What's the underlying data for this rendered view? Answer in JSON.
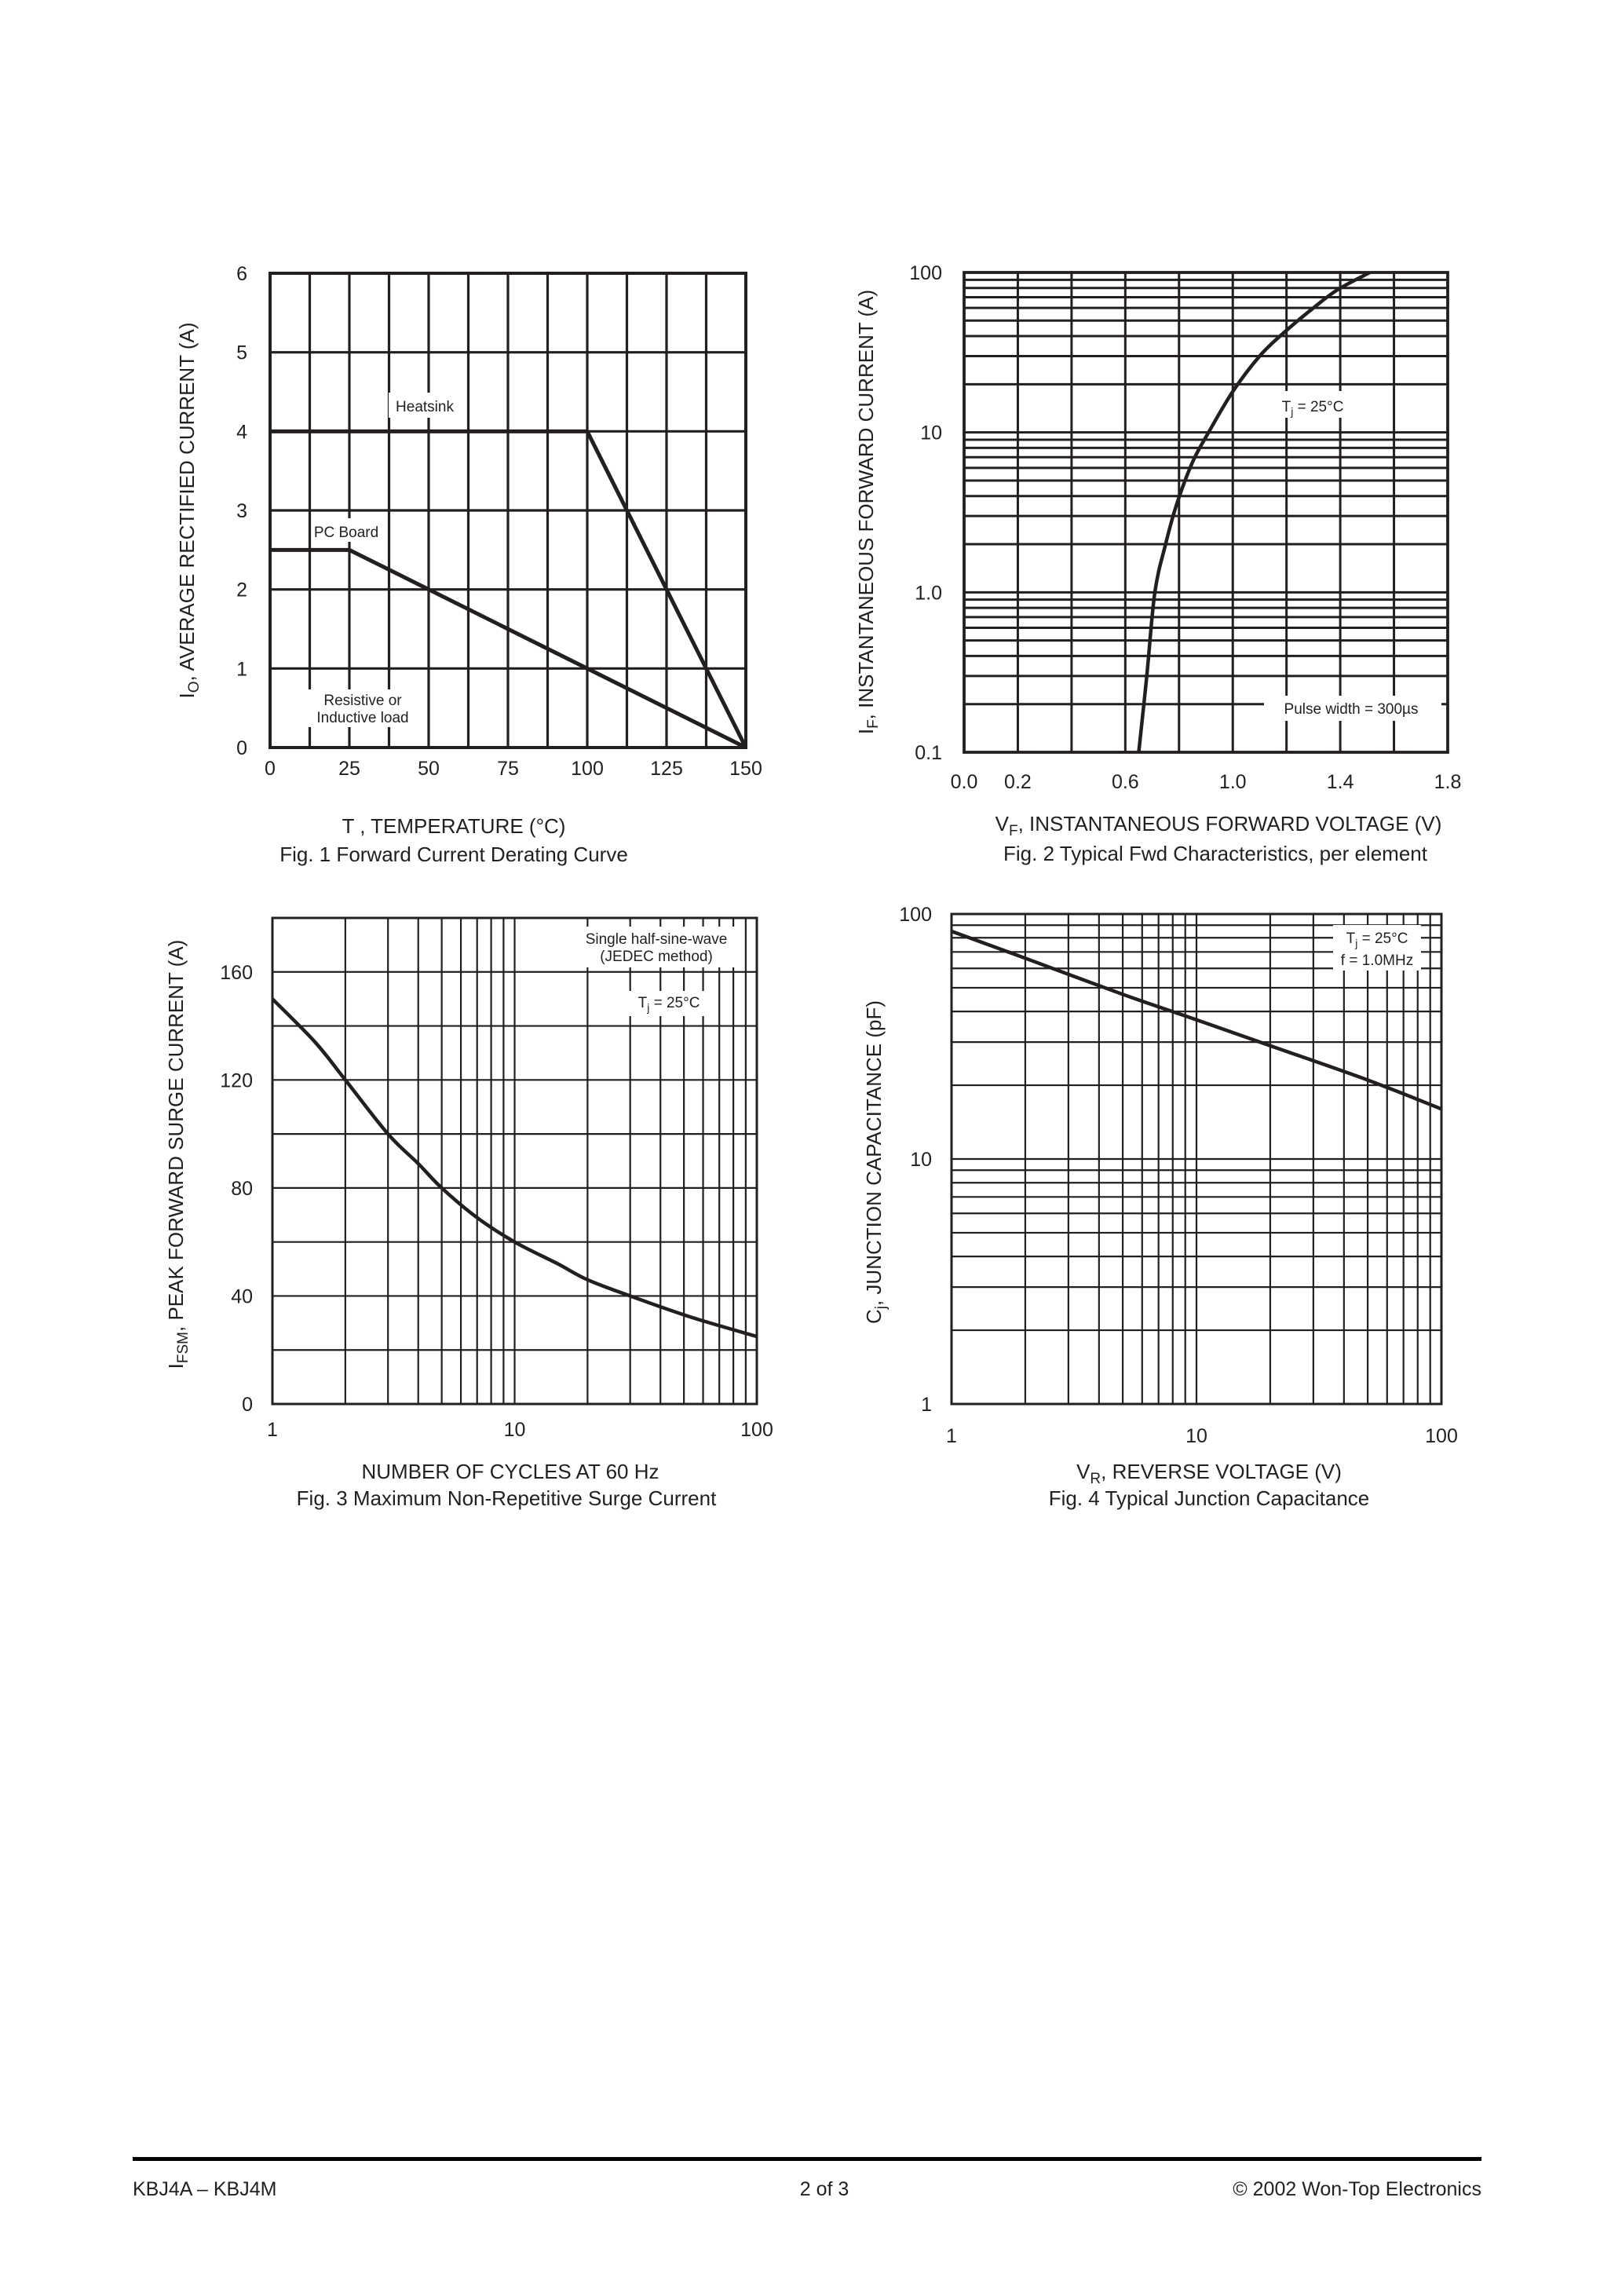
{
  "footer": {
    "left": "KBJ4A – KBJ4M",
    "center": "2 of 3",
    "right": "© 2002 Won-Top Electronics"
  },
  "chart_data": [
    {
      "type": "line",
      "caption": "Fig. 1  Forward Current Derating Curve",
      "xlabel": {
        "text": "T  , TEMPERATURE (°C)"
      },
      "ylabel": {
        "prefix": "I",
        "sub": "O",
        "text": ", AVERAGE RECTIFIED CURRENT (A)"
      },
      "xscale": "linear",
      "yscale": "linear",
      "xlim": [
        0,
        150
      ],
      "ylim": [
        0,
        6
      ],
      "xticks": [
        {
          "v": 0,
          "label": "0"
        },
        {
          "v": 25,
          "label": "25"
        },
        {
          "v": 50,
          "label": "50"
        },
        {
          "v": 75,
          "label": "75"
        },
        {
          "v": 100,
          "label": "100"
        },
        {
          "v": 125,
          "label": "125"
        },
        {
          "v": 150,
          "label": "150"
        }
      ],
      "yticks": [
        {
          "v": 0,
          "label": "0"
        },
        {
          "v": 1,
          "label": "1"
        },
        {
          "v": 2,
          "label": "2"
        },
        {
          "v": 3,
          "label": "3"
        },
        {
          "v": 4,
          "label": "4"
        },
        {
          "v": 5,
          "label": "5"
        },
        {
          "v": 6,
          "label": "6"
        }
      ],
      "grid": true,
      "series": [
        {
          "name": "Heatsink",
          "points": [
            [
              0,
              4
            ],
            [
              100,
              4
            ],
            [
              150,
              0
            ]
          ]
        },
        {
          "name": "PC Board",
          "points": [
            [
              0,
              2.5
            ],
            [
              25,
              2.5
            ],
            [
              150,
              0
            ]
          ]
        }
      ],
      "annotations": [
        "Resistive or",
        "Inductive load"
      ]
    },
    {
      "type": "line",
      "caption": "Fig. 2  Typical Fwd Characteristics, per element",
      "xlabel": {
        "prefix": "V",
        "sub": "F",
        "text": ", INSTANTANEOUS FORWARD VOLTAGE (V)"
      },
      "ylabel": {
        "prefix": "I",
        "sub": "F",
        "text": ", INSTANTANEOUS FORWARD CURRENT (A)"
      },
      "xscale": "linear",
      "yscale": "log",
      "xlim": [
        0,
        1.8
      ],
      "ylim": [
        0.1,
        100
      ],
      "xticks": [
        {
          "v": 0,
          "label": "0.0"
        },
        {
          "v": 0.2,
          "label": "0.2"
        },
        {
          "v": 0.6,
          "label": "0.6"
        },
        {
          "v": 1.0,
          "label": "1.0"
        },
        {
          "v": 1.4,
          "label": "1.4"
        },
        {
          "v": 1.8,
          "label": "1.8"
        }
      ],
      "yticks": [
        {
          "v": 0.1,
          "label": "0.1"
        },
        {
          "v": 1,
          "label": "1.0"
        },
        {
          "v": 10,
          "label": "10"
        },
        {
          "v": 100,
          "label": "100"
        }
      ],
      "grid": true,
      "series": [
        {
          "points": [
            [
              0.65,
              0.1
            ],
            [
              0.68,
              0.3
            ],
            [
              0.71,
              1.0
            ],
            [
              0.75,
              2
            ],
            [
              0.79,
              3.5
            ],
            [
              0.85,
              6.5
            ],
            [
              0.91,
              10
            ],
            [
              1.0,
              18
            ],
            [
              1.1,
              30
            ],
            [
              1.19,
              42
            ],
            [
              1.3,
              60
            ],
            [
              1.39,
              78
            ],
            [
              1.51,
              100
            ]
          ]
        }
      ],
      "annotations": {
        "tj": {
          "prefix": "T",
          "sub": "j",
          "text": " = 25°C"
        },
        "pulse": "Pulse width = 300µs"
      }
    },
    {
      "type": "line",
      "caption": "Fig. 3  Maximum Non-Repetitive Surge Current",
      "xlabel": {
        "text": "NUMBER OF CYCLES AT 60 Hz"
      },
      "ylabel": {
        "prefix": "I",
        "sub": "FSM",
        "text": ", PEAK FORWARD SURGE CURRENT (A)"
      },
      "xscale": "log",
      "yscale": "linear",
      "xlim": [
        1,
        100
      ],
      "ylim": [
        0,
        180
      ],
      "xticks": [
        {
          "v": 1,
          "label": "1"
        },
        {
          "v": 10,
          "label": "10"
        },
        {
          "v": 100,
          "label": "100"
        }
      ],
      "yticks": [
        {
          "v": 0,
          "label": "0"
        },
        {
          "v": 40,
          "label": "40"
        },
        {
          "v": 80,
          "label": "80"
        },
        {
          "v": 120,
          "label": "120"
        },
        {
          "v": 160,
          "label": "160"
        }
      ],
      "grid": true,
      "series": [
        {
          "points": [
            [
              1,
              150
            ],
            [
              1.5,
              134
            ],
            [
              2,
              120
            ],
            [
              3,
              100
            ],
            [
              4,
              89
            ],
            [
              5,
              80
            ],
            [
              7,
              69
            ],
            [
              10,
              60
            ],
            [
              15,
              52
            ],
            [
              20,
              46
            ],
            [
              30,
              40
            ],
            [
              50,
              33
            ],
            [
              70,
              29
            ],
            [
              100,
              25
            ]
          ]
        }
      ],
      "annotations": {
        "line1": "Single half-sine-wave",
        "line2": "(JEDEC method)",
        "tj": {
          "prefix": "T",
          "sub": "j",
          "text": " = 25°C"
        }
      }
    },
    {
      "type": "line",
      "caption": "Fig. 4  Typical Junction Capacitance",
      "xlabel": {
        "prefix": "V",
        "sub": "R",
        "text": ", REVERSE VOLTAGE (V)"
      },
      "ylabel": {
        "prefix": "C",
        "sub": "j",
        "text": ", JUNCTION CAPACITANCE (pF)"
      },
      "xscale": "log",
      "yscale": "log",
      "xlim": [
        1,
        100
      ],
      "ylim": [
        1,
        100
      ],
      "xticks": [
        {
          "v": 1,
          "label": "1"
        },
        {
          "v": 10,
          "label": "10"
        },
        {
          "v": 100,
          "label": "100"
        }
      ],
      "yticks": [
        {
          "v": 1,
          "label": "1"
        },
        {
          "v": 10,
          "label": "10"
        },
        {
          "v": 100,
          "label": "100"
        }
      ],
      "grid": true,
      "series": [
        {
          "points": [
            [
              1,
              85
            ],
            [
              2,
              66
            ],
            [
              5,
              47
            ],
            [
              10,
              37
            ],
            [
              20,
              29
            ],
            [
              50,
              21
            ],
            [
              100,
              16
            ]
          ]
        }
      ],
      "annotations": {
        "tj": {
          "prefix": "T",
          "sub": "j",
          "text": " = 25°C"
        },
        "freq": "f = 1.0MHz"
      }
    }
  ]
}
